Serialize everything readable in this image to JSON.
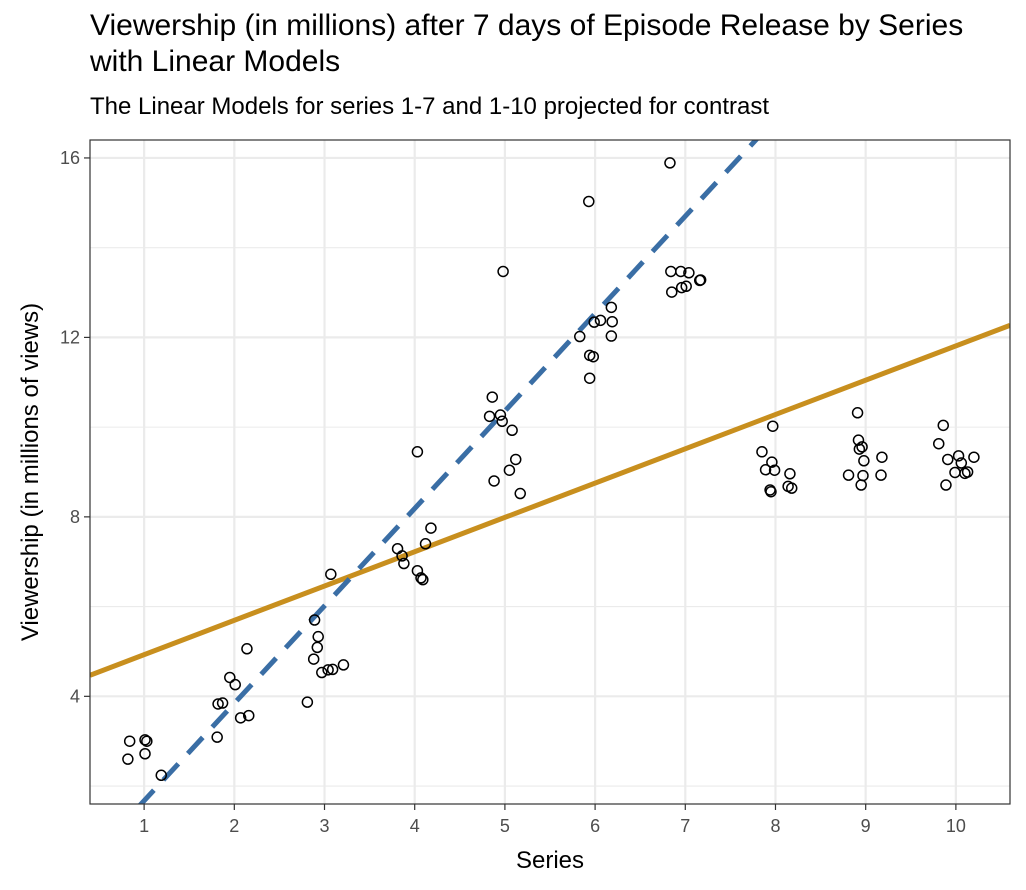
{
  "chart_data": {
    "type": "scatter",
    "title": "Viewership (in millions) after 7 days of Episode Release by Series with Linear Models",
    "subtitle": "The Linear Models for series 1-7 and 1-10 projected for contrast",
    "xlabel": "Series",
    "ylabel": "Viewership (in millions of views)",
    "xlim": [
      0.4,
      10.6
    ],
    "ylim": [
      1.6,
      16.4
    ],
    "x_ticks": [
      1,
      2,
      3,
      4,
      5,
      6,
      7,
      8,
      9,
      10
    ],
    "y_ticks": [
      4,
      8,
      12,
      16
    ],
    "grid": true,
    "colors": {
      "points_stroke": "#000000",
      "model_1_7": "#3a6ea5",
      "model_1_10": "#c88f1e",
      "grid": "#ebebeb",
      "panel_border": "#333333"
    },
    "series": [
      {
        "type": "scatter",
        "points": [
          [
            0.82,
            2.6
          ],
          [
            0.84,
            3.0
          ],
          [
            1.01,
            2.72
          ],
          [
            1.01,
            3.03
          ],
          [
            1.03,
            3.0
          ],
          [
            1.19,
            2.24
          ],
          [
            1.81,
            3.09
          ],
          [
            1.82,
            3.83
          ],
          [
            1.87,
            3.85
          ],
          [
            1.95,
            4.42
          ],
          [
            2.01,
            4.26
          ],
          [
            2.07,
            3.52
          ],
          [
            2.14,
            5.06
          ],
          [
            2.16,
            3.57
          ],
          [
            2.81,
            3.87
          ],
          [
            2.88,
            4.83
          ],
          [
            2.89,
            5.7
          ],
          [
            2.92,
            5.09
          ],
          [
            2.93,
            5.33
          ],
          [
            2.97,
            4.53
          ],
          [
            3.04,
            4.59
          ],
          [
            3.07,
            6.72
          ],
          [
            3.09,
            4.6
          ],
          [
            3.21,
            4.7
          ],
          [
            3.81,
            7.29
          ],
          [
            3.86,
            7.13
          ],
          [
            3.88,
            6.96
          ],
          [
            4.03,
            9.45
          ],
          [
            4.03,
            6.8
          ],
          [
            4.07,
            6.64
          ],
          [
            4.09,
            6.6
          ],
          [
            4.12,
            7.4
          ],
          [
            4.18,
            7.75
          ],
          [
            4.83,
            10.24
          ],
          [
            4.86,
            10.67
          ],
          [
            4.88,
            8.8
          ],
          [
            4.95,
            10.27
          ],
          [
            4.97,
            10.13
          ],
          [
            4.98,
            13.47
          ],
          [
            5.05,
            9.04
          ],
          [
            5.08,
            9.93
          ],
          [
            5.12,
            9.28
          ],
          [
            5.17,
            8.52
          ],
          [
            5.83,
            12.02
          ],
          [
            5.93,
            15.03
          ],
          [
            5.94,
            11.6
          ],
          [
            5.94,
            11.09
          ],
          [
            5.98,
            11.57
          ],
          [
            5.99,
            12.34
          ],
          [
            6.06,
            12.38
          ],
          [
            6.18,
            12.67
          ],
          [
            6.18,
            12.03
          ],
          [
            6.19,
            12.35
          ],
          [
            6.83,
            15.89
          ],
          [
            6.84,
            13.47
          ],
          [
            6.85,
            13.01
          ],
          [
            6.95,
            13.47
          ],
          [
            6.96,
            13.11
          ],
          [
            7.01,
            13.14
          ],
          [
            7.04,
            13.44
          ],
          [
            7.16,
            13.27
          ],
          [
            7.17,
            13.28
          ],
          [
            7.85,
            9.45
          ],
          [
            7.89,
            9.05
          ],
          [
            7.94,
            8.6
          ],
          [
            7.95,
            8.56
          ],
          [
            7.96,
            9.22
          ],
          [
            7.97,
            10.02
          ],
          [
            7.99,
            9.04
          ],
          [
            8.14,
            8.68
          ],
          [
            8.16,
            8.96
          ],
          [
            8.18,
            8.64
          ],
          [
            8.81,
            8.93
          ],
          [
            8.91,
            10.32
          ],
          [
            8.92,
            9.71
          ],
          [
            8.93,
            9.51
          ],
          [
            8.95,
            8.71
          ],
          [
            8.96,
            9.56
          ],
          [
            8.97,
            8.92
          ],
          [
            8.98,
            9.25
          ],
          [
            9.17,
            8.93
          ],
          [
            9.18,
            9.33
          ],
          [
            9.81,
            9.63
          ],
          [
            9.86,
            10.04
          ],
          [
            9.89,
            8.71
          ],
          [
            9.91,
            9.28
          ],
          [
            9.99,
            8.99
          ],
          [
            10.03,
            9.36
          ],
          [
            10.06,
            9.2
          ],
          [
            10.1,
            8.97
          ],
          [
            10.13,
            9.0
          ],
          [
            10.2,
            9.33
          ]
        ]
      },
      {
        "type": "line",
        "dash": "dashed",
        "x": [
          0.4,
          10.6
        ],
        "y": [
          0.37,
          22.52
        ]
      },
      {
        "type": "line",
        "dash": "solid",
        "x": [
          0.4,
          10.6
        ],
        "y": [
          4.47,
          12.27
        ]
      }
    ]
  }
}
